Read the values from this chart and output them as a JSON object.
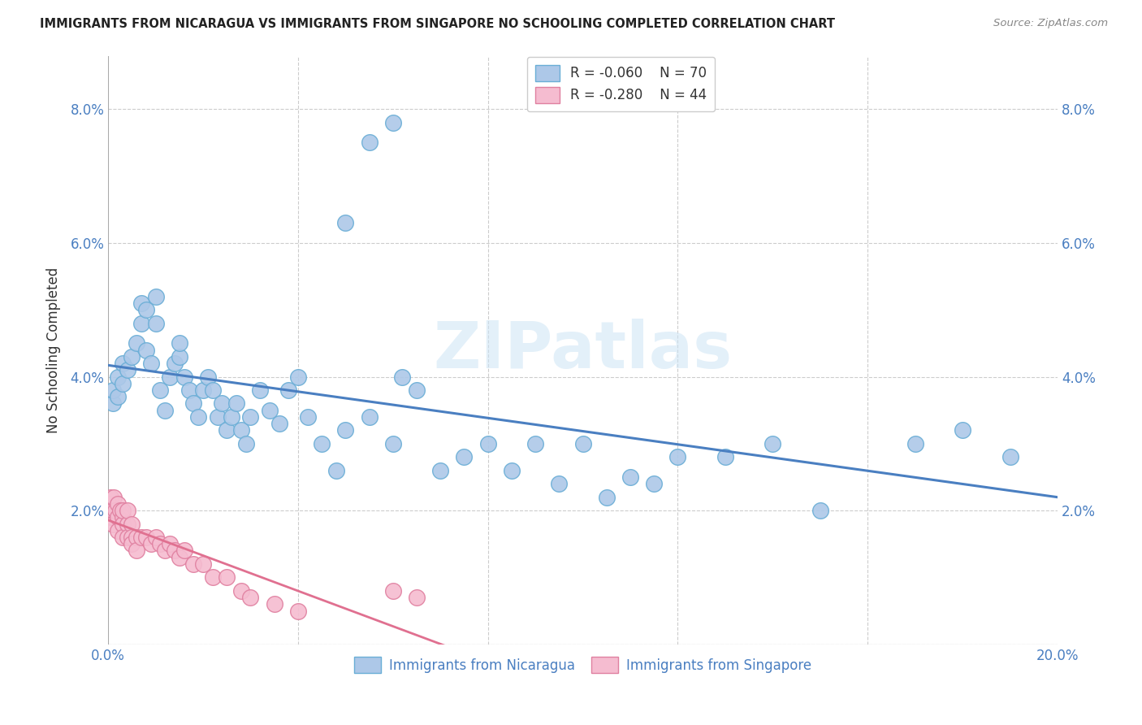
{
  "title": "IMMIGRANTS FROM NICARAGUA VS IMMIGRANTS FROM SINGAPORE NO SCHOOLING COMPLETED CORRELATION CHART",
  "source": "Source: ZipAtlas.com",
  "ylabel": "No Schooling Completed",
  "xlim": [
    0.0,
    0.2
  ],
  "ylim": [
    0.0,
    0.088
  ],
  "xticks": [
    0.0,
    0.2
  ],
  "xticklabels": [
    "0.0%",
    "20.0%"
  ],
  "yticks": [
    0.0,
    0.02,
    0.04,
    0.06,
    0.08
  ],
  "yticklabels": [
    "",
    "2.0%",
    "4.0%",
    "6.0%",
    "8.0%"
  ],
  "yticks_right": [
    0.02,
    0.04,
    0.06,
    0.08
  ],
  "yticklabels_right": [
    "2.0%",
    "4.0%",
    "6.0%",
    "8.0%"
  ],
  "blue_color": "#adc8e8",
  "blue_edge_color": "#6aaed6",
  "pink_color": "#f5bcd0",
  "pink_edge_color": "#e080a0",
  "trend_blue": "#4a7fc1",
  "trend_pink": "#e07090",
  "legend_r_blue": "R = -0.060",
  "legend_n_blue": "N = 70",
  "legend_r_pink": "R = -0.280",
  "legend_n_pink": "N = 44",
  "watermark": "ZIPatlas",
  "blue_scatter_x": [
    0.001,
    0.001,
    0.002,
    0.002,
    0.003,
    0.003,
    0.004,
    0.005,
    0.006,
    0.007,
    0.007,
    0.008,
    0.008,
    0.009,
    0.01,
    0.01,
    0.011,
    0.012,
    0.013,
    0.014,
    0.015,
    0.015,
    0.016,
    0.017,
    0.018,
    0.019,
    0.02,
    0.021,
    0.022,
    0.023,
    0.024,
    0.025,
    0.026,
    0.027,
    0.028,
    0.029,
    0.03,
    0.032,
    0.034,
    0.036,
    0.038,
    0.04,
    0.042,
    0.045,
    0.048,
    0.05,
    0.055,
    0.06,
    0.062,
    0.065,
    0.07,
    0.075,
    0.08,
    0.085,
    0.09,
    0.095,
    0.1,
    0.105,
    0.11,
    0.115,
    0.12,
    0.13,
    0.14,
    0.15,
    0.05,
    0.055,
    0.06,
    0.17,
    0.18,
    0.19
  ],
  "blue_scatter_y": [
    0.036,
    0.038,
    0.037,
    0.04,
    0.039,
    0.042,
    0.041,
    0.043,
    0.045,
    0.051,
    0.048,
    0.05,
    0.044,
    0.042,
    0.048,
    0.052,
    0.038,
    0.035,
    0.04,
    0.042,
    0.043,
    0.045,
    0.04,
    0.038,
    0.036,
    0.034,
    0.038,
    0.04,
    0.038,
    0.034,
    0.036,
    0.032,
    0.034,
    0.036,
    0.032,
    0.03,
    0.034,
    0.038,
    0.035,
    0.033,
    0.038,
    0.04,
    0.034,
    0.03,
    0.026,
    0.032,
    0.034,
    0.03,
    0.04,
    0.038,
    0.026,
    0.028,
    0.03,
    0.026,
    0.03,
    0.024,
    0.03,
    0.022,
    0.025,
    0.024,
    0.028,
    0.028,
    0.03,
    0.02,
    0.063,
    0.075,
    0.078,
    0.03,
    0.032,
    0.028
  ],
  "pink_scatter_x": [
    0.0002,
    0.0003,
    0.0005,
    0.0007,
    0.001,
    0.001,
    0.0012,
    0.0015,
    0.002,
    0.002,
    0.002,
    0.0025,
    0.003,
    0.003,
    0.003,
    0.003,
    0.004,
    0.004,
    0.004,
    0.005,
    0.005,
    0.005,
    0.006,
    0.006,
    0.007,
    0.008,
    0.009,
    0.01,
    0.011,
    0.012,
    0.013,
    0.014,
    0.015,
    0.016,
    0.018,
    0.02,
    0.022,
    0.025,
    0.028,
    0.03,
    0.035,
    0.04,
    0.06,
    0.065
  ],
  "pink_scatter_y": [
    0.021,
    0.02,
    0.022,
    0.019,
    0.02,
    0.018,
    0.022,
    0.02,
    0.021,
    0.019,
    0.017,
    0.02,
    0.019,
    0.018,
    0.016,
    0.02,
    0.018,
    0.016,
    0.02,
    0.018,
    0.016,
    0.015,
    0.016,
    0.014,
    0.016,
    0.016,
    0.015,
    0.016,
    0.015,
    0.014,
    0.015,
    0.014,
    0.013,
    0.014,
    0.012,
    0.012,
    0.01,
    0.01,
    0.008,
    0.007,
    0.006,
    0.005,
    0.008,
    0.007
  ],
  "figsize": [
    14.06,
    8.92
  ],
  "dpi": 100
}
